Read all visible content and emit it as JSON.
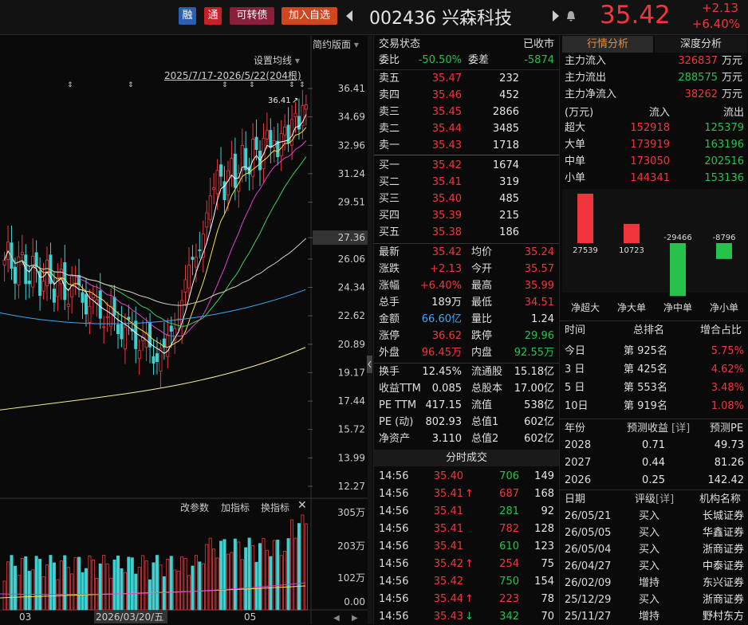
{
  "colors": {
    "up": "#f0363c",
    "down": "#27c24c",
    "bg": "#0a0a0a",
    "accent": "#3fa9f5"
  },
  "header": {
    "badge_rong": "融",
    "badge_tong": "通",
    "badge_kzz": "可转债",
    "add_watch": "加入自选",
    "stock": "002436 兴森科技",
    "price": "35.42",
    "change": "+2.13",
    "change_pct": "+6.40%",
    "prev_icon": "triangle-left-icon",
    "next_icon": "triangle-right-icon",
    "bell_icon": "bell-icon"
  },
  "chart": {
    "mode": "简约版面",
    "ma_settings": "设置均线",
    "range": "2025/7/17-2026/5/22(204根)",
    "price_labels": [
      "36.41",
      "34.69",
      "32.96",
      "31.24",
      "29.51",
      "27.36",
      "26.06",
      "24.34",
      "22.62",
      "20.89",
      "19.17",
      "17.44",
      "15.72",
      "13.99",
      "12.27"
    ],
    "high_marker": "36.41",
    "vol_tools": {
      "params": "改参数",
      "add": "加指标",
      "swap": "换指标"
    },
    "vol_labels": [
      "305万",
      "203万",
      "102万",
      "0.00"
    ],
    "x_labels": [
      "03",
      "2026/03/20/五",
      "05"
    ]
  },
  "chart_data": {
    "type": "candlestick",
    "title": "",
    "xlabel": "",
    "ylabel": "",
    "ylim": [
      12.27,
      36.41
    ],
    "x": [
      "2026/03/20"
    ],
    "moving_averages": [
      "MA5",
      "MA10",
      "MA20",
      "MA30",
      "MA60",
      "MA120",
      "MA250"
    ],
    "last_close": 35.42,
    "high": 36.41
  },
  "trade": {
    "title": "交易状态",
    "status": "已收市",
    "weibi_label": "委比",
    "weibi": "-50.50%",
    "weicha_label": "委差",
    "weicha": "-5874",
    "asks": [
      {
        "label": "卖五",
        "price": "35.47",
        "vol": "232"
      },
      {
        "label": "卖四",
        "price": "35.46",
        "vol": "452"
      },
      {
        "label": "卖三",
        "price": "35.45",
        "vol": "2866"
      },
      {
        "label": "卖二",
        "price": "35.44",
        "vol": "3485"
      },
      {
        "label": "卖一",
        "price": "35.43",
        "vol": "1718"
      }
    ],
    "bids": [
      {
        "label": "买一",
        "price": "35.42",
        "vol": "1674"
      },
      {
        "label": "买二",
        "price": "35.41",
        "vol": "319"
      },
      {
        "label": "买三",
        "price": "35.40",
        "vol": "485"
      },
      {
        "label": "买四",
        "price": "35.39",
        "vol": "215"
      },
      {
        "label": "买五",
        "price": "35.38",
        "vol": "186"
      }
    ],
    "stats": [
      {
        "l1": "最新",
        "v1": "35.42",
        "c1": "red",
        "l2": "均价",
        "v2": "35.24",
        "c2": "red"
      },
      {
        "l1": "涨跌",
        "v1": "+2.13",
        "c1": "red",
        "l2": "今开",
        "v2": "35.57",
        "c2": "red"
      },
      {
        "l1": "涨幅",
        "v1": "+6.40%",
        "c1": "red",
        "l2": "最高",
        "v2": "35.99",
        "c2": "red"
      },
      {
        "l1": "总手",
        "v1": "189万",
        "c1": "white",
        "l2": "最低",
        "v2": "34.51",
        "c2": "red"
      },
      {
        "l1": "金额",
        "v1": "66.60亿",
        "c1": "blue",
        "l2": "量比",
        "v2": "1.24",
        "c2": "white"
      },
      {
        "l1": "涨停",
        "v1": "36.62",
        "c1": "red",
        "l2": "跌停",
        "v2": "29.96",
        "c2": "green"
      },
      {
        "l1": "外盘",
        "v1": "96.45万",
        "c1": "red",
        "l2": "内盘",
        "v2": "92.55万",
        "c2": "green"
      }
    ],
    "stats2": [
      {
        "l1": "换手",
        "v1": "12.45%",
        "l2": "流通股",
        "v2": "15.18亿"
      },
      {
        "l1": "收益TTM",
        "v1": "0.085",
        "l2": "总股本",
        "v2": "17.00亿"
      },
      {
        "l1": "PE TTM",
        "v1": "417.15",
        "l2": "流值",
        "v2": "538亿"
      },
      {
        "l1": "PE (动)",
        "v1": "802.93",
        "l2": "总值1",
        "v2": "602亿"
      },
      {
        "l1": "净资产",
        "v1": "3.110",
        "l2": "总值2",
        "v2": "602亿"
      }
    ]
  },
  "ticks": {
    "title": "分时成交",
    "rows": [
      {
        "t": "14:56",
        "p": "35.40",
        "arrow": "",
        "v": "706",
        "vc": "green",
        "n": "149"
      },
      {
        "t": "14:56",
        "p": "35.41",
        "arrow": "↑",
        "v": "687",
        "vc": "red",
        "n": "168"
      },
      {
        "t": "14:56",
        "p": "35.41",
        "arrow": "",
        "v": "281",
        "vc": "green",
        "n": "92"
      },
      {
        "t": "14:56",
        "p": "35.41",
        "arrow": "",
        "v": "782",
        "vc": "red",
        "n": "128"
      },
      {
        "t": "14:56",
        "p": "35.41",
        "arrow": "",
        "v": "610",
        "vc": "green",
        "n": "123"
      },
      {
        "t": "14:56",
        "p": "35.42",
        "arrow": "↑",
        "v": "254",
        "vc": "red",
        "n": "75"
      },
      {
        "t": "14:56",
        "p": "35.42",
        "arrow": "",
        "v": "750",
        "vc": "green",
        "n": "154"
      },
      {
        "t": "14:56",
        "p": "35.44",
        "arrow": "↑",
        "v": "223",
        "vc": "red",
        "n": "78"
      },
      {
        "t": "14:56",
        "p": "35.43",
        "arrow": "↓",
        "v": "342",
        "vc": "green",
        "n": "70"
      }
    ]
  },
  "right": {
    "tab1": "行情分析",
    "tab2": "深度分析",
    "mainflow": [
      {
        "label": "主力流入",
        "value": "326837",
        "color": "red",
        "unit": "万元"
      },
      {
        "label": "主力流出",
        "value": "288575",
        "color": "green",
        "unit": "万元"
      },
      {
        "label": "主力净流入",
        "value": "38262",
        "color": "red",
        "unit": "万元"
      }
    ],
    "flow_header": {
      "unit": "(万元)",
      "in": "流入",
      "out": "流出"
    },
    "flows": [
      {
        "label": "超大",
        "in": "152918",
        "out": "125379"
      },
      {
        "label": "大单",
        "in": "173919",
        "out": "163196"
      },
      {
        "label": "中单",
        "in": "173050",
        "out": "202516"
      },
      {
        "label": "小单",
        "in": "144341",
        "out": "153136"
      }
    ],
    "net_chart": {
      "categories": [
        "净超大",
        "净大单",
        "净中单",
        "净小单"
      ],
      "values": [
        27539,
        10723,
        -29466,
        -8796
      ],
      "labels": [
        "27539",
        "10723",
        "-29466",
        "-8796"
      ]
    },
    "rank_header": {
      "time": "时间",
      "rank": "总排名",
      "ratio": "增合占比"
    },
    "ranks": [
      {
        "time": "今日",
        "rank": "第 925名",
        "ratio": "5.75%"
      },
      {
        "time": "3 日",
        "rank": "第 425名",
        "ratio": "4.62%"
      },
      {
        "time": "5 日",
        "rank": "第 553名",
        "ratio": "3.48%"
      },
      {
        "time": "10日",
        "rank": "第 919名",
        "ratio": "1.08%"
      }
    ],
    "forecast_header": {
      "year": "年份",
      "eps": "预测收益",
      "detail": "[详]",
      "pe": "预测PE"
    },
    "forecast": [
      {
        "year": "2028",
        "eps": "0.71",
        "pe": "49.73"
      },
      {
        "year": "2027",
        "eps": "0.44",
        "pe": "81.26"
      },
      {
        "year": "2026",
        "eps": "0.25",
        "pe": "142.42"
      }
    ],
    "rating_header": {
      "date": "日期",
      "rating": "评级",
      "detail": "[详]",
      "org": "机构名称"
    },
    "ratings": [
      {
        "date": "26/05/21",
        "rating": "买入",
        "org": "长城证券"
      },
      {
        "date": "26/05/05",
        "rating": "买入",
        "org": "华鑫证券"
      },
      {
        "date": "26/05/04",
        "rating": "买入",
        "org": "浙商证券"
      },
      {
        "date": "26/04/27",
        "rating": "买入",
        "org": "中泰证券"
      },
      {
        "date": "26/02/09",
        "rating": "增持",
        "org": "东兴证券"
      },
      {
        "date": "25/12/29",
        "rating": "买入",
        "org": "浙商证券"
      },
      {
        "date": "25/11/27",
        "rating": "增持",
        "org": "野村东方"
      }
    ]
  }
}
